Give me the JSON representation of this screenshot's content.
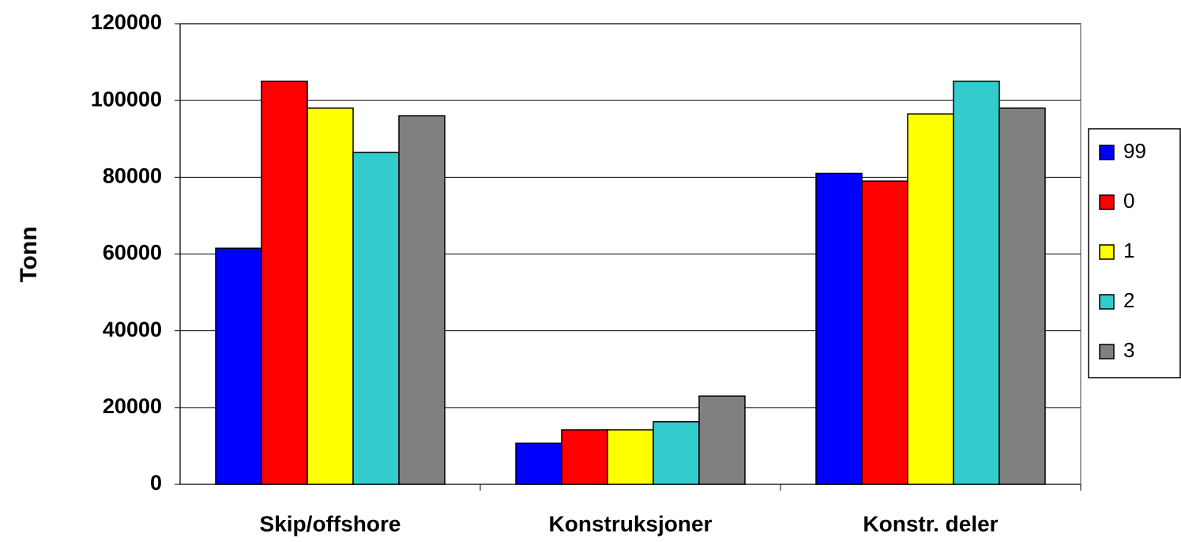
{
  "chart_data": {
    "type": "bar",
    "y_label": "Tonn",
    "categories": [
      "Skip/offshore",
      "Konstruksjoner",
      "Konstr. deler"
    ],
    "series": [
      {
        "name": "99",
        "color": "#0000ff",
        "values": [
          61500,
          10700,
          81000
        ]
      },
      {
        "name": "0",
        "color": "#ff0000",
        "values": [
          105000,
          14200,
          79000
        ]
      },
      {
        "name": "1",
        "color": "#ffff00",
        "values": [
          98000,
          14200,
          96500
        ]
      },
      {
        "name": "2",
        "color": "#33cccc",
        "values": [
          86500,
          16300,
          105000
        ]
      },
      {
        "name": "3",
        "color": "#808080",
        "values": [
          96000,
          23000,
          98000
        ]
      }
    ],
    "ylim": [
      0,
      120000
    ],
    "yticks": [
      0,
      20000,
      40000,
      60000,
      80000,
      100000,
      120000
    ],
    "grid": true,
    "legend": "right"
  }
}
